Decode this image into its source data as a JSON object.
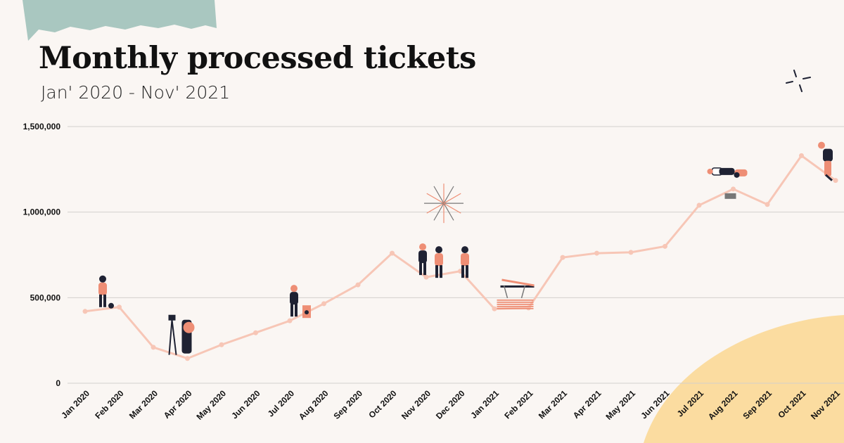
{
  "colors": {
    "background": "#faf6f3",
    "line": "#f7c6b6",
    "gridline": "#d3d0cd",
    "tape": "#a9c7c0",
    "corner_blob": "#fbdca0",
    "figure_accent": "#ee8e75",
    "figure_dark": "#1f2233"
  },
  "chart_data": {
    "type": "line",
    "title": "Monthly processed tickets",
    "subtitle": "Jan' 2020 - Nov' 2021",
    "xlabel": "",
    "ylabel": "",
    "ylim": [
      0,
      1500000
    ],
    "yticks": [
      0,
      500000,
      1000000,
      1500000
    ],
    "ytick_labels": [
      "0",
      "500,000",
      "1,000,000",
      "1,500,000"
    ],
    "grid": true,
    "categories": [
      "Jan 2020",
      "Feb 2020",
      "Mar 2020",
      "Apr 2020",
      "May 2020",
      "Jun 2020",
      "Jul 2020",
      "Aug 2020",
      "Sep 2020",
      "Oct 2020",
      "Nov 2020",
      "Dec 2020",
      "Jan 2021",
      "Feb 2021",
      "Mar 2021",
      "Apr 2021",
      "May 2021",
      "Jun 2021",
      "Jul 2021",
      "Aug 2021",
      "Sep 2021",
      "Oct 2021",
      "Nov 2021"
    ],
    "series": [
      {
        "values": [
          420000,
          445000,
          210000,
          145000,
          225000,
          295000,
          365000,
          465000,
          575000,
          760000,
          620000,
          655000,
          435000,
          440000,
          735000,
          760000,
          765000,
          800000,
          1040000,
          1135000,
          1045000,
          1330000,
          1185000
        ]
      }
    ],
    "illustrations": [
      {
        "category": "Jan 2020",
        "icon": "person-standing-with-ball-icon"
      },
      {
        "category": "Apr 2020",
        "icon": "person-with-tripod-icon"
      },
      {
        "category": "Jul 2020",
        "icon": "person-with-speaker-icon"
      },
      {
        "category": "Nov 2020",
        "icon": "celebration-group-icon"
      },
      {
        "category": "Feb 2021",
        "icon": "workbench-icon"
      },
      {
        "category": "Aug 2021",
        "icon": "dancing-people-icon"
      },
      {
        "category": "Nov 2021",
        "icon": "climbing-person-icon"
      }
    ]
  }
}
